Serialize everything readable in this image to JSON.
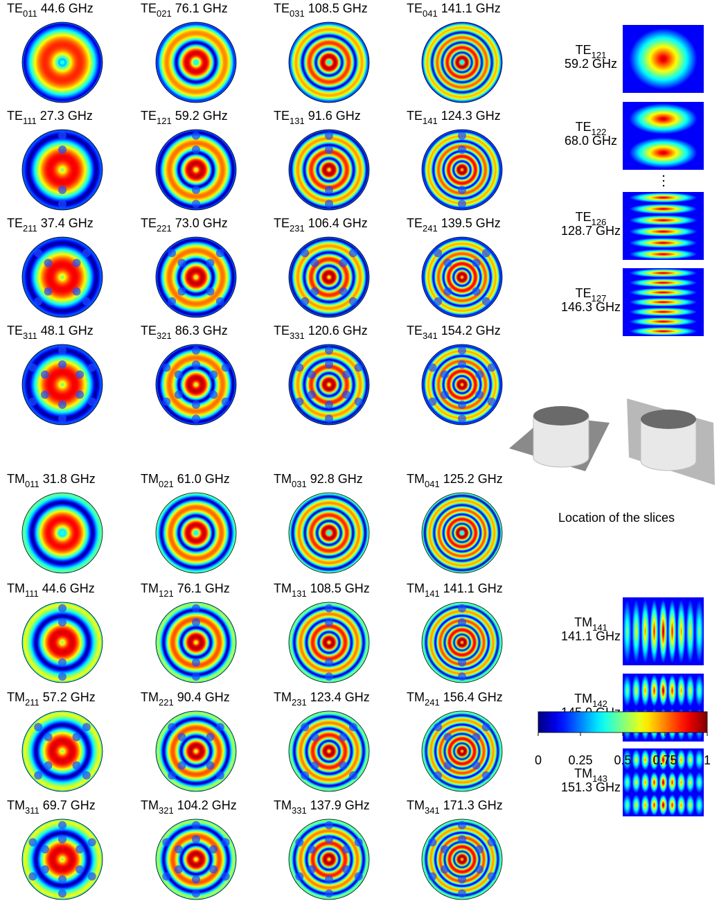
{
  "te_modes": [
    {
      "prefix": "TE",
      "sub": "011",
      "freq": "44.6 GHz"
    },
    {
      "prefix": "TE",
      "sub": "021",
      "freq": "76.1 GHz"
    },
    {
      "prefix": "TE",
      "sub": "031",
      "freq": "108.5 GHz"
    },
    {
      "prefix": "TE",
      "sub": "041",
      "freq": "141.1 GHz"
    },
    {
      "prefix": "TE",
      "sub": "111",
      "freq": "27.3 GHz"
    },
    {
      "prefix": "TE",
      "sub": "121",
      "freq": "59.2 GHz"
    },
    {
      "prefix": "TE",
      "sub": "131",
      "freq": "91.6 GHz"
    },
    {
      "prefix": "TE",
      "sub": "141",
      "freq": "124.3 GHz"
    },
    {
      "prefix": "TE",
      "sub": "211",
      "freq": "37.4 GHz"
    },
    {
      "prefix": "TE",
      "sub": "221",
      "freq": "73.0 GHz"
    },
    {
      "prefix": "TE",
      "sub": "231",
      "freq": "106.4 GHz"
    },
    {
      "prefix": "TE",
      "sub": "241",
      "freq": "139.5 GHz"
    },
    {
      "prefix": "TE",
      "sub": "311",
      "freq": "48.1 GHz"
    },
    {
      "prefix": "TE",
      "sub": "321",
      "freq": "86.3 GHz"
    },
    {
      "prefix": "TE",
      "sub": "331",
      "freq": "120.6 GHz"
    },
    {
      "prefix": "TE",
      "sub": "341",
      "freq": "154.2 GHz"
    }
  ],
  "tm_modes": [
    {
      "prefix": "TM",
      "sub": "011",
      "freq": "31.8 GHz"
    },
    {
      "prefix": "TM",
      "sub": "021",
      "freq": "61.0 GHz"
    },
    {
      "prefix": "TM",
      "sub": "031",
      "freq": "92.8 GHz"
    },
    {
      "prefix": "TM",
      "sub": "041",
      "freq": "125.2 GHz"
    },
    {
      "prefix": "TM",
      "sub": "111",
      "freq": "44.6 GHz"
    },
    {
      "prefix": "TM",
      "sub": "121",
      "freq": "76.1 GHz"
    },
    {
      "prefix": "TM",
      "sub": "131",
      "freq": "108.5 GHz"
    },
    {
      "prefix": "TM",
      "sub": "141",
      "freq": "141.1 GHz"
    },
    {
      "prefix": "TM",
      "sub": "211",
      "freq": "57.2 GHz"
    },
    {
      "prefix": "TM",
      "sub": "221",
      "freq": "90.4 GHz"
    },
    {
      "prefix": "TM",
      "sub": "231",
      "freq": "123.4 GHz"
    },
    {
      "prefix": "TM",
      "sub": "241",
      "freq": "156.4 GHz"
    },
    {
      "prefix": "TM",
      "sub": "311",
      "freq": "69.7 GHz"
    },
    {
      "prefix": "TM",
      "sub": "321",
      "freq": "104.2 GHz"
    },
    {
      "prefix": "TM",
      "sub": "331",
      "freq": "137.9 GHz"
    },
    {
      "prefix": "TM",
      "sub": "341",
      "freq": "171.3 GHz"
    }
  ],
  "te_slices": [
    {
      "prefix": "TE",
      "sub": "121",
      "freq": "59.2 GHz"
    },
    {
      "prefix": "TE",
      "sub": "122",
      "freq": "68.0 GHz"
    },
    {
      "prefix": "TE",
      "sub": "126",
      "freq": "128.7 GHz"
    },
    {
      "prefix": "TE",
      "sub": "127",
      "freq": "146.3 GHz"
    }
  ],
  "tm_slices": [
    {
      "prefix": "TM",
      "sub": "141",
      "freq": "141.1 GHz"
    },
    {
      "prefix": "TM",
      "sub": "142",
      "freq": "145.0 GHz"
    },
    {
      "prefix": "TM",
      "sub": "143",
      "freq": "151.3 GHz"
    }
  ],
  "slice_caption": "Location of the slices",
  "colorbar": {
    "ticks": [
      0,
      0.25,
      0.5,
      0.75,
      1
    ]
  }
}
